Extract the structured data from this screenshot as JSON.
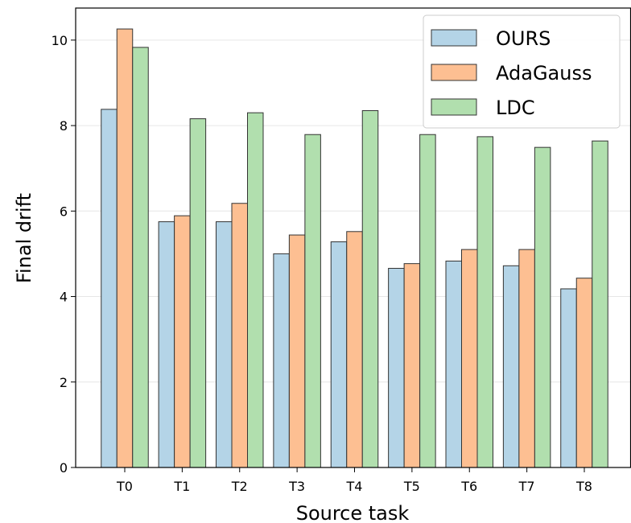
{
  "chart_data": {
    "type": "bar",
    "title": "",
    "xlabel": "Source task",
    "ylabel": "Final drift",
    "categories": [
      "T0",
      "T1",
      "T2",
      "T3",
      "T4",
      "T5",
      "T6",
      "T7",
      "T8"
    ],
    "ylim": [
      0,
      10.75
    ],
    "yticks": [
      0,
      2,
      4,
      6,
      8,
      10
    ],
    "grid": "y",
    "legend_position": "top-right",
    "series": [
      {
        "name": "OURS",
        "color": "#b4d4e7",
        "values": [
          8.38,
          5.75,
          5.75,
          5.0,
          5.28,
          4.66,
          4.83,
          4.72,
          4.18
        ]
      },
      {
        "name": "AdaGauss",
        "color": "#fdbf92",
        "values": [
          10.26,
          5.89,
          6.18,
          5.44,
          5.52,
          4.77,
          5.1,
          5.1,
          4.43
        ]
      },
      {
        "name": "LDC",
        "color": "#b1dfae",
        "values": [
          9.83,
          8.16,
          8.3,
          7.79,
          8.35,
          7.79,
          7.74,
          7.49,
          7.64
        ]
      }
    ]
  }
}
